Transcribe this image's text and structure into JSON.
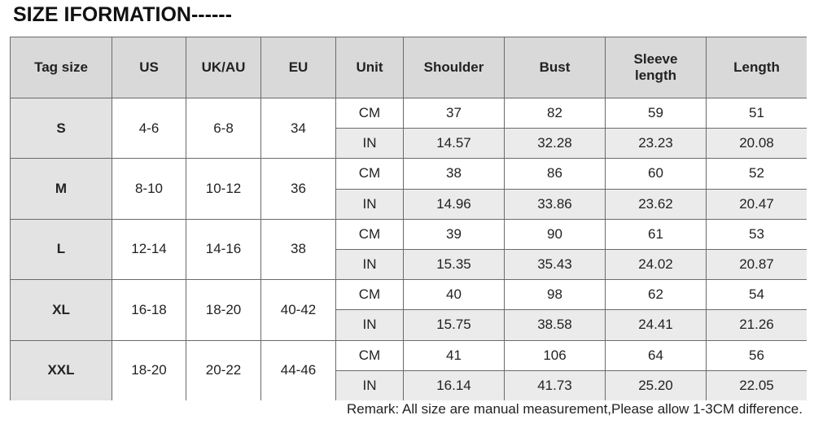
{
  "title": "SIZE IFORMATION------",
  "table": {
    "header": [
      "Tag size",
      "US",
      "UK/AU",
      "EU",
      "Unit",
      "Shoulder",
      "Bust",
      "Sleeve length",
      "Length"
    ],
    "groups": [
      {
        "tag": "S",
        "us": "4-6",
        "uk": "6-8",
        "eu": "34",
        "rows": [
          [
            "CM",
            "37",
            "82",
            "59",
            "51"
          ],
          [
            "IN",
            "14.57",
            "32.28",
            "23.23",
            "20.08"
          ]
        ]
      },
      {
        "tag": "M",
        "us": "8-10",
        "uk": "10-12",
        "eu": "36",
        "rows": [
          [
            "CM",
            "38",
            "86",
            "60",
            "52"
          ],
          [
            "IN",
            "14.96",
            "33.86",
            "23.62",
            "20.47"
          ]
        ]
      },
      {
        "tag": "L",
        "us": "12-14",
        "uk": "14-16",
        "eu": "38",
        "rows": [
          [
            "CM",
            "39",
            "90",
            "61",
            "53"
          ],
          [
            "IN",
            "15.35",
            "35.43",
            "24.02",
            "20.87"
          ]
        ]
      },
      {
        "tag": "XL",
        "us": "16-18",
        "uk": "18-20",
        "eu": "40-42",
        "rows": [
          [
            "CM",
            "40",
            "98",
            "62",
            "54"
          ],
          [
            "IN",
            "15.75",
            "38.58",
            "24.41",
            "21.26"
          ]
        ]
      },
      {
        "tag": "XXL",
        "us": "18-20",
        "uk": "20-22",
        "eu": "44-46",
        "rows": [
          [
            "CM",
            "41",
            "106",
            "64",
            "56"
          ],
          [
            "IN",
            "16.14",
            "41.73",
            "25.20",
            "22.05"
          ]
        ]
      }
    ]
  },
  "remark": "Remark: All size are manual measurement,Please allow 1-3CM difference."
}
